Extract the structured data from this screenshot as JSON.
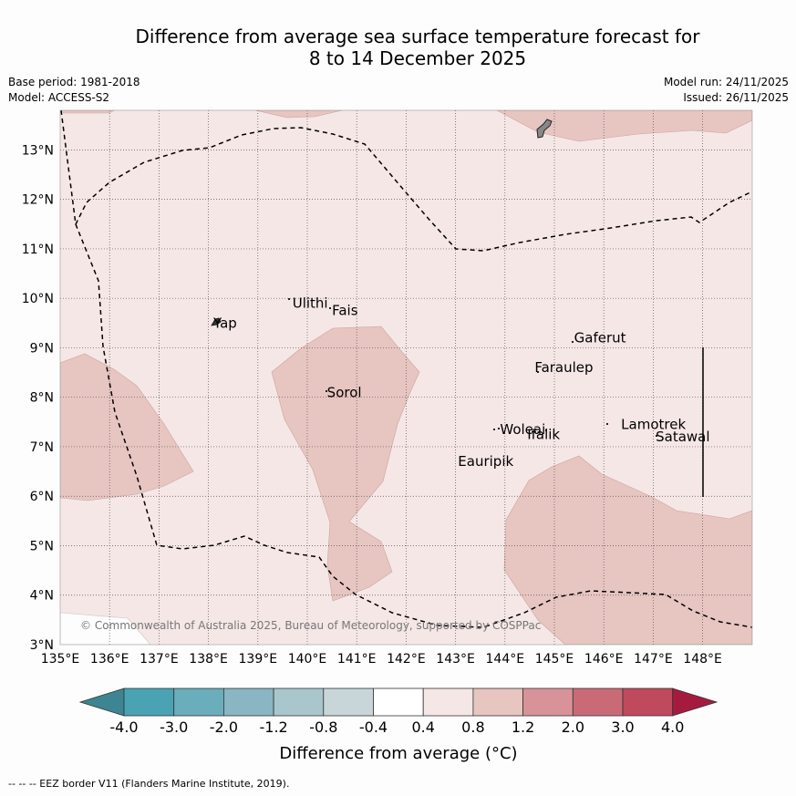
{
  "title": {
    "line1": "Difference from average sea surface temperature forecast for",
    "line2": "8 to 14 December 2025"
  },
  "meta": {
    "base_period": "Base period: 1981-2018",
    "model": "Model: ACCESS-S2",
    "model_run": "Model run: 24/11/2025",
    "issued": "Issued: 26/11/2025"
  },
  "axes": {
    "lon_labels": [
      "135°E",
      "136°E",
      "137°E",
      "138°E",
      "139°E",
      "140°E",
      "141°E",
      "142°E",
      "143°E",
      "144°E",
      "145°E",
      "146°E",
      "147°E",
      "148°E"
    ],
    "lat_labels": [
      "3°N",
      "4°N",
      "5°N",
      "6°N",
      "7°N",
      "8°N",
      "9°N",
      "10°N",
      "11°N",
      "12°N",
      "13°N"
    ]
  },
  "places": [
    {
      "name": "Yap",
      "lon": 138.1,
      "lat": 9.5
    },
    {
      "name": "Ulithi",
      "lon": 139.7,
      "lat": 9.9
    },
    {
      "name": "Fais",
      "lon": 140.5,
      "lat": 9.75
    },
    {
      "name": "Sorol",
      "lon": 140.4,
      "lat": 8.1
    },
    {
      "name": "Gaferut",
      "lon": 145.4,
      "lat": 9.2
    },
    {
      "name": "Faraulep",
      "lon": 144.6,
      "lat": 8.6
    },
    {
      "name": "Woleai",
      "lon": 143.9,
      "lat": 7.35
    },
    {
      "name": "Ifalik",
      "lon": 144.45,
      "lat": 7.25
    },
    {
      "name": "Lamotrek",
      "lon": 146.35,
      "lat": 7.45
    },
    {
      "name": "Satawal",
      "lon": 147.05,
      "lat": 7.2
    },
    {
      "name": "Eauripik",
      "lon": 143.05,
      "lat": 6.7
    }
  ],
  "attribution": "© Commonwealth of Australia 2025, Bureau of Meteorology, supported by COSPPac",
  "colorbar": {
    "label": "Difference from average (°C)",
    "ticks": [
      "-4.0",
      "-3.0",
      "-2.0",
      "-1.2",
      "-0.8",
      "-0.4",
      "0.4",
      "0.8",
      "1.2",
      "2.0",
      "3.0",
      "4.0"
    ],
    "colors": [
      "#3d8592",
      "#4aa3b3",
      "#6aadbb",
      "#89b6c2",
      "#a9c6cd",
      "#c8d6da",
      "#ffffff",
      "#f5e7e6",
      "#e7c5c1",
      "#d8939a",
      "#c96b77",
      "#bf4a5d",
      "#a51b3f"
    ]
  },
  "legend": {
    "eez": "-- -- -- EEZ border V11 (Flanders Marine Institute, 2019)."
  }
}
